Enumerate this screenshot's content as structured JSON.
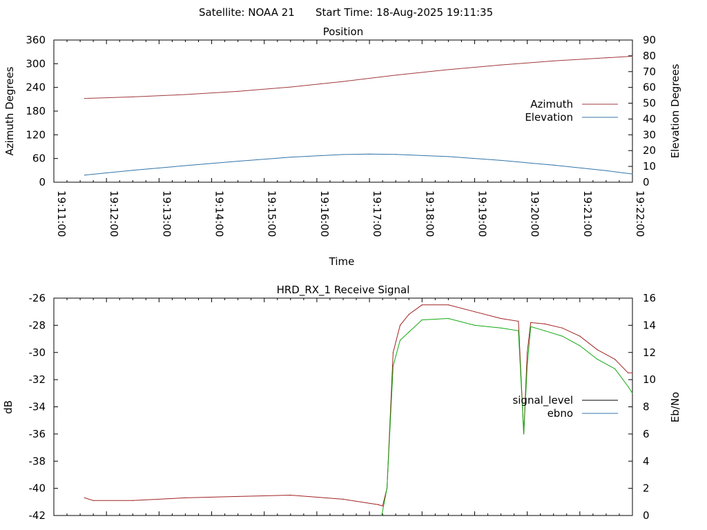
{
  "header": {
    "satellite": "Satellite: NOAA 21",
    "start_time": "Start Time: 18-Aug-2025 19:11:35"
  },
  "colors": {
    "azimuth": "#a0383c",
    "elevation": "#2f73a8",
    "signal_level": "#000000",
    "ebno": "#11a811",
    "signal_trace_low": "#a02020"
  },
  "chart_data": [
    {
      "type": "line",
      "title": "Position",
      "xlabel": "Time",
      "ylabel": "Azimuth Degrees",
      "y2label": "Elevation Degrees",
      "xlim": [
        "19:11:00",
        "19:22:00"
      ],
      "ylim": [
        0,
        360
      ],
      "y2lim": [
        0,
        90
      ],
      "xticks": [
        "19:11:00",
        "19:12:00",
        "19:13:00",
        "19:14:00",
        "19:15:00",
        "19:16:00",
        "19:17:00",
        "19:18:00",
        "19:19:00",
        "19:20:00",
        "19:21:00",
        "19:22:00"
      ],
      "yticks": [
        "0",
        "60",
        "120",
        "180",
        "240",
        "300",
        "360"
      ],
      "y2ticks": [
        "0",
        "10",
        "20",
        "30",
        "40",
        "50",
        "60",
        "70",
        "80",
        "90"
      ],
      "legend_position": "right",
      "series": [
        {
          "name": "Azimuth",
          "axis": "y",
          "x": [
            "19:11:35",
            "19:12:30",
            "19:13:30",
            "19:14:30",
            "19:15:30",
            "19:16:30",
            "19:17:30",
            "19:18:30",
            "19:19:30",
            "19:20:30",
            "19:21:30",
            "19:22:00"
          ],
          "values": [
            212,
            216,
            222,
            230,
            241,
            255,
            271,
            285,
            297,
            307,
            315,
            319
          ]
        },
        {
          "name": "Elevation",
          "axis": "y2",
          "x": [
            "19:11:35",
            "19:12:30",
            "19:13:30",
            "19:14:30",
            "19:15:30",
            "19:16:30",
            "19:17:00",
            "19:17:30",
            "19:18:30",
            "19:19:30",
            "19:20:30",
            "19:21:30",
            "19:22:00"
          ],
          "values": [
            4.5,
            7.5,
            10.5,
            13.3,
            15.8,
            17.5,
            17.8,
            17.6,
            16.2,
            13.8,
            10.8,
            7.3,
            5.2
          ]
        }
      ]
    },
    {
      "type": "line",
      "title": "HRD_RX_1 Receive Signal",
      "ylabel": "dB",
      "y2label": "Eb/No",
      "xlim": [
        "19:11:00",
        "19:22:00"
      ],
      "ylim": [
        -42,
        -26
      ],
      "y2lim": [
        0,
        16
      ],
      "yticks": [
        "-42",
        "-40",
        "-38",
        "-36",
        "-34",
        "-32",
        "-30",
        "-28",
        "-26"
      ],
      "y2ticks": [
        "0",
        "2",
        "4",
        "6",
        "8",
        "10",
        "12",
        "14",
        "16"
      ],
      "legend_position": "right",
      "series": [
        {
          "name": "signal_level",
          "axis": "y",
          "x": [
            "19:11:35",
            "19:11:45",
            "19:12:30",
            "19:13:30",
            "19:14:30",
            "19:15:30",
            "19:16:30",
            "19:17:10",
            "19:17:15",
            "19:17:20",
            "19:17:27",
            "19:17:35",
            "19:17:45",
            "19:18:00",
            "19:18:30",
            "19:19:00",
            "19:19:30",
            "19:19:50",
            "19:19:56",
            "19:20:00",
            "19:20:04",
            "19:20:20",
            "19:20:40",
            "19:21:00",
            "19:21:20",
            "19:21:40",
            "19:21:55",
            "19:22:00"
          ],
          "values": [
            -40.7,
            -40.9,
            -40.9,
            -40.7,
            -40.6,
            -40.5,
            -40.8,
            -41.2,
            -41.3,
            -40.0,
            -30.0,
            -28.0,
            -27.2,
            -26.5,
            -26.5,
            -27.0,
            -27.5,
            -27.7,
            -36.0,
            -30.0,
            -27.8,
            -27.9,
            -28.2,
            -28.8,
            -29.8,
            -30.5,
            -31.5,
            -31.5
          ]
        },
        {
          "name": "ebno",
          "axis": "y2",
          "x": [
            "19:17:14",
            "19:17:20",
            "19:17:27",
            "19:17:35",
            "19:17:45",
            "19:18:00",
            "19:18:30",
            "19:19:00",
            "19:19:30",
            "19:19:50",
            "19:19:56",
            "19:20:00",
            "19:20:04",
            "19:20:20",
            "19:20:40",
            "19:21:00",
            "19:21:20",
            "19:21:40",
            "19:21:55",
            "19:22:00"
          ],
          "values": [
            0,
            2.0,
            11.0,
            12.9,
            13.5,
            14.4,
            14.5,
            14.0,
            13.8,
            13.6,
            6.0,
            11.0,
            13.9,
            13.6,
            13.2,
            12.5,
            11.5,
            10.8,
            9.5,
            9.0
          ]
        }
      ]
    }
  ]
}
